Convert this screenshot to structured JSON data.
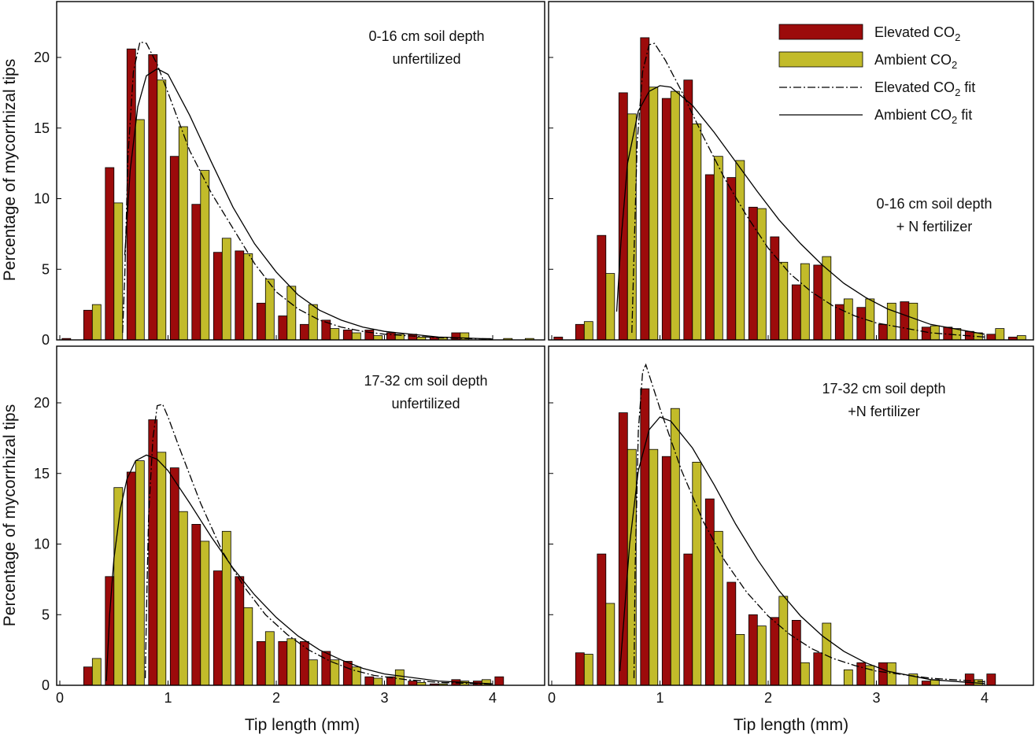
{
  "colors": {
    "elevated": "#9c0b0b",
    "ambient": "#c2bb2a",
    "frame": "#000000"
  },
  "legend": {
    "items": [
      {
        "key": "elevated",
        "kind": "bar",
        "text": "Elevated  CO",
        "sub": "2",
        "tail": ""
      },
      {
        "key": "ambient",
        "kind": "bar",
        "text": "Ambient CO",
        "sub": "2",
        "tail": ""
      },
      {
        "key": "elevated_fit",
        "kind": "dashdot",
        "text": "Elevated CO",
        "sub": "2",
        "tail": " fit"
      },
      {
        "key": "ambient_fit",
        "kind": "solid",
        "text": "Ambient CO",
        "sub": "2",
        "tail": " fit"
      }
    ]
  },
  "axes": {
    "ylabel": "Percentage of mycorrhizal tips",
    "xlabel": "Tip length (mm)",
    "xticks": [
      "0",
      "1",
      "2",
      "3",
      "4"
    ],
    "yticks": [
      "0",
      "5",
      "10",
      "15",
      "20"
    ],
    "xlim": [
      0,
      4.5
    ],
    "ylim": [
      0,
      23.5
    ]
  },
  "chart_data": [
    {
      "type": "bar",
      "annotation": [
        "0-16 cm soil depth",
        "unfertilized"
      ],
      "x": [
        0.1,
        0.3,
        0.5,
        0.7,
        0.9,
        1.1,
        1.3,
        1.5,
        1.7,
        1.9,
        2.1,
        2.3,
        2.5,
        2.7,
        2.9,
        3.1,
        3.3,
        3.5,
        3.7,
        3.9,
        4.1,
        4.3
      ],
      "series": [
        {
          "name": "Elevated CO2",
          "values": [
            0.1,
            2.1,
            12.2,
            20.6,
            20.2,
            13.0,
            9.6,
            6.2,
            6.3,
            2.6,
            1.7,
            1.1,
            1.4,
            0.7,
            0.7,
            0.5,
            0.4,
            0.2,
            0.5,
            0,
            0,
            0
          ]
        },
        {
          "name": "Ambient CO2",
          "values": [
            0,
            2.5,
            9.7,
            15.6,
            18.4,
            15.1,
            12.0,
            7.2,
            6.1,
            4.3,
            3.8,
            2.5,
            0.8,
            0.5,
            0.3,
            0.4,
            0.2,
            0.2,
            0.5,
            0.1,
            0.1,
            0.1
          ]
        }
      ],
      "fits": {
        "elevated": [
          [
            0.58,
            0.5
          ],
          [
            0.6,
            4.5
          ],
          [
            0.63,
            13.0
          ],
          [
            0.68,
            19.0
          ],
          [
            0.74,
            21.1
          ],
          [
            0.8,
            21.0
          ],
          [
            0.9,
            19.5
          ],
          [
            1.0,
            17.5
          ],
          [
            1.2,
            13.4
          ],
          [
            1.4,
            10.4
          ],
          [
            1.6,
            7.9
          ],
          [
            1.8,
            5.4
          ],
          [
            2.0,
            3.4
          ],
          [
            2.2,
            2.2
          ],
          [
            2.4,
            1.4
          ],
          [
            2.6,
            0.9
          ],
          [
            2.8,
            0.6
          ],
          [
            3.0,
            0.4
          ],
          [
            3.5,
            0.15
          ],
          [
            4.0,
            0.05
          ],
          [
            4.5,
            0.01
          ]
        ],
        "ambient": [
          [
            0.6,
            6.0
          ],
          [
            0.65,
            12.0
          ],
          [
            0.72,
            16.5
          ],
          [
            0.8,
            18.7
          ],
          [
            0.9,
            19.2
          ],
          [
            1.0,
            18.8
          ],
          [
            1.2,
            15.9
          ],
          [
            1.4,
            12.6
          ],
          [
            1.6,
            9.4
          ],
          [
            1.8,
            6.8
          ],
          [
            2.0,
            4.8
          ],
          [
            2.2,
            3.2
          ],
          [
            2.4,
            2.1
          ],
          [
            2.6,
            1.4
          ],
          [
            2.8,
            0.9
          ],
          [
            3.0,
            0.6
          ],
          [
            3.5,
            0.2
          ],
          [
            4.0,
            0.06
          ],
          [
            4.5,
            0.02
          ]
        ]
      }
    },
    {
      "type": "bar",
      "annotation": [
        "0-16 cm soil depth",
        "+ N fertilizer"
      ],
      "x": [
        0.1,
        0.3,
        0.5,
        0.7,
        0.9,
        1.1,
        1.3,
        1.5,
        1.7,
        1.9,
        2.1,
        2.3,
        2.5,
        2.7,
        2.9,
        3.1,
        3.3,
        3.5,
        3.7,
        3.9,
        4.1,
        4.3
      ],
      "series": [
        {
          "name": "Elevated CO2",
          "values": [
            0.2,
            1.1,
            7.4,
            17.5,
            21.4,
            17.1,
            18.4,
            11.7,
            11.5,
            9.4,
            7.3,
            3.9,
            5.3,
            2.5,
            2.3,
            1.1,
            2.7,
            0.9,
            0.9,
            0.6,
            0.4,
            0.2
          ]
        },
        {
          "name": "Ambient CO2",
          "values": [
            0,
            1.3,
            4.7,
            16.0,
            17.9,
            17.6,
            15.3,
            13.0,
            12.7,
            9.3,
            5.5,
            5.4,
            5.9,
            2.9,
            2.9,
            2.6,
            2.6,
            1.0,
            0.8,
            0.5,
            0.8,
            0.3
          ]
        }
      ],
      "fits": {
        "elevated": [
          [
            0.74,
            0.5
          ],
          [
            0.76,
            6.0
          ],
          [
            0.79,
            14.0
          ],
          [
            0.84,
            19.0
          ],
          [
            0.9,
            20.9
          ],
          [
            0.95,
            21.0
          ],
          [
            1.05,
            19.8
          ],
          [
            1.2,
            17.6
          ],
          [
            1.4,
            14.4
          ],
          [
            1.6,
            11.4
          ],
          [
            1.8,
            8.8
          ],
          [
            2.0,
            6.5
          ],
          [
            2.2,
            4.7
          ],
          [
            2.4,
            3.4
          ],
          [
            2.6,
            2.4
          ],
          [
            2.8,
            1.7
          ],
          [
            3.0,
            1.2
          ],
          [
            3.5,
            0.5
          ],
          [
            4.0,
            0.2
          ],
          [
            4.5,
            0.08
          ]
        ],
        "ambient": [
          [
            0.6,
            2.0
          ],
          [
            0.64,
            7.0
          ],
          [
            0.7,
            12.5
          ],
          [
            0.8,
            16.2
          ],
          [
            0.9,
            17.6
          ],
          [
            1.0,
            18.0
          ],
          [
            1.1,
            17.9
          ],
          [
            1.3,
            16.6
          ],
          [
            1.5,
            14.7
          ],
          [
            1.7,
            12.6
          ],
          [
            1.9,
            10.5
          ],
          [
            2.1,
            8.5
          ],
          [
            2.3,
            6.8
          ],
          [
            2.5,
            5.3
          ],
          [
            2.7,
            4.0
          ],
          [
            2.9,
            3.0
          ],
          [
            3.1,
            2.2
          ],
          [
            3.5,
            1.1
          ],
          [
            4.0,
            0.4
          ],
          [
            4.5,
            0.15
          ]
        ]
      }
    },
    {
      "type": "bar",
      "annotation": [
        "17-32 cm soil depth",
        "unfertilized"
      ],
      "x": [
        0.1,
        0.3,
        0.5,
        0.7,
        0.9,
        1.1,
        1.3,
        1.5,
        1.7,
        1.9,
        2.1,
        2.3,
        2.5,
        2.7,
        2.9,
        3.1,
        3.3,
        3.5,
        3.7,
        3.9,
        4.1,
        4.3
      ],
      "series": [
        {
          "name": "Elevated CO2",
          "values": [
            0,
            1.3,
            7.7,
            15.1,
            18.8,
            15.4,
            11.4,
            8.1,
            7.7,
            3.1,
            3.1,
            3.1,
            2.4,
            1.7,
            0.6,
            0.6,
            0.3,
            0.1,
            0.4,
            0.3,
            0.6,
            0
          ]
        },
        {
          "name": "Ambient CO2",
          "values": [
            0,
            1.9,
            14.0,
            15.9,
            16.5,
            12.3,
            10.2,
            10.9,
            5.5,
            3.8,
            3.3,
            1.8,
            1.8,
            1.3,
            0.5,
            1.1,
            0.2,
            0.1,
            0.3,
            0.4,
            0,
            0
          ]
        }
      ],
      "fits": {
        "elevated": [
          [
            0.79,
            0.5
          ],
          [
            0.8,
            5.0
          ],
          [
            0.82,
            12.0
          ],
          [
            0.86,
            17.5
          ],
          [
            0.9,
            19.8
          ],
          [
            0.95,
            19.9
          ],
          [
            1.0,
            19.0
          ],
          [
            1.1,
            16.9
          ],
          [
            1.3,
            12.9
          ],
          [
            1.5,
            9.5
          ],
          [
            1.7,
            7.0
          ],
          [
            1.9,
            5.0
          ],
          [
            2.1,
            3.6
          ],
          [
            2.3,
            2.5
          ],
          [
            2.5,
            1.7
          ],
          [
            2.7,
            1.1
          ],
          [
            2.9,
            0.7
          ],
          [
            3.2,
            0.4
          ],
          [
            3.5,
            0.2
          ],
          [
            4.0,
            0.08
          ],
          [
            4.5,
            0.03
          ]
        ],
        "ambient": [
          [
            0.43,
            0.3
          ],
          [
            0.46,
            5.0
          ],
          [
            0.5,
            9.0
          ],
          [
            0.56,
            12.5
          ],
          [
            0.62,
            14.6
          ],
          [
            0.7,
            15.9
          ],
          [
            0.8,
            16.3
          ],
          [
            0.9,
            16.0
          ],
          [
            1.0,
            15.2
          ],
          [
            1.2,
            12.9
          ],
          [
            1.4,
            10.5
          ],
          [
            1.6,
            8.3
          ],
          [
            1.8,
            6.4
          ],
          [
            2.0,
            4.8
          ],
          [
            2.2,
            3.5
          ],
          [
            2.4,
            2.5
          ],
          [
            2.6,
            1.8
          ],
          [
            2.8,
            1.2
          ],
          [
            3.0,
            0.8
          ],
          [
            3.5,
            0.3
          ],
          [
            4.0,
            0.1
          ],
          [
            4.5,
            0.03
          ]
        ]
      }
    },
    {
      "type": "bar",
      "annotation": [
        "17-32 cm soil depth",
        "+N fertilizer"
      ],
      "x": [
        0.1,
        0.3,
        0.5,
        0.7,
        0.9,
        1.1,
        1.3,
        1.5,
        1.7,
        1.9,
        2.1,
        2.3,
        2.5,
        2.7,
        2.9,
        3.1,
        3.3,
        3.5,
        3.7,
        3.9,
        4.1,
        4.3
      ],
      "series": [
        {
          "name": "Elevated CO2",
          "values": [
            0,
            2.3,
            9.3,
            19.3,
            21.0,
            16.2,
            9.3,
            13.2,
            7.3,
            5.0,
            4.8,
            4.6,
            2.3,
            0,
            1.6,
            1.6,
            0,
            0.3,
            0,
            0.8,
            0.8,
            0
          ]
        },
        {
          "name": "Ambient CO2",
          "values": [
            0,
            2.2,
            5.8,
            16.7,
            16.7,
            19.6,
            15.8,
            10.9,
            3.6,
            4.2,
            6.3,
            1.6,
            4.4,
            1.1,
            1.4,
            1.6,
            0.8,
            0.4,
            0,
            0.4,
            0,
            0
          ]
        }
      ],
      "fits": {
        "elevated": [
          [
            0.76,
            0.5
          ],
          [
            0.77,
            8.0
          ],
          [
            0.8,
            18.0
          ],
          [
            0.84,
            22.2
          ],
          [
            0.87,
            22.7
          ],
          [
            0.92,
            21.5
          ],
          [
            1.0,
            19.6
          ],
          [
            1.2,
            15.2
          ],
          [
            1.4,
            11.6
          ],
          [
            1.6,
            8.8
          ],
          [
            1.8,
            6.6
          ],
          [
            2.0,
            4.9
          ],
          [
            2.2,
            3.6
          ],
          [
            2.4,
            2.6
          ],
          [
            2.6,
            1.9
          ],
          [
            2.8,
            1.4
          ],
          [
            3.0,
            1.0
          ],
          [
            3.5,
            0.5
          ],
          [
            4.0,
            0.25
          ],
          [
            4.5,
            0.1
          ]
        ],
        "ambient": [
          [
            0.63,
            1.0
          ],
          [
            0.67,
            5.0
          ],
          [
            0.72,
            10.0
          ],
          [
            0.8,
            15.2
          ],
          [
            0.9,
            18.1
          ],
          [
            1.0,
            19.0
          ],
          [
            1.1,
            18.7
          ],
          [
            1.3,
            16.8
          ],
          [
            1.5,
            14.2
          ],
          [
            1.7,
            11.4
          ],
          [
            1.9,
            8.9
          ],
          [
            2.1,
            6.7
          ],
          [
            2.3,
            4.9
          ],
          [
            2.5,
            3.5
          ],
          [
            2.7,
            2.4
          ],
          [
            2.9,
            1.6
          ],
          [
            3.1,
            1.0
          ],
          [
            3.5,
            0.4
          ],
          [
            4.0,
            0.12
          ],
          [
            4.5,
            0.04
          ]
        ]
      }
    }
  ]
}
